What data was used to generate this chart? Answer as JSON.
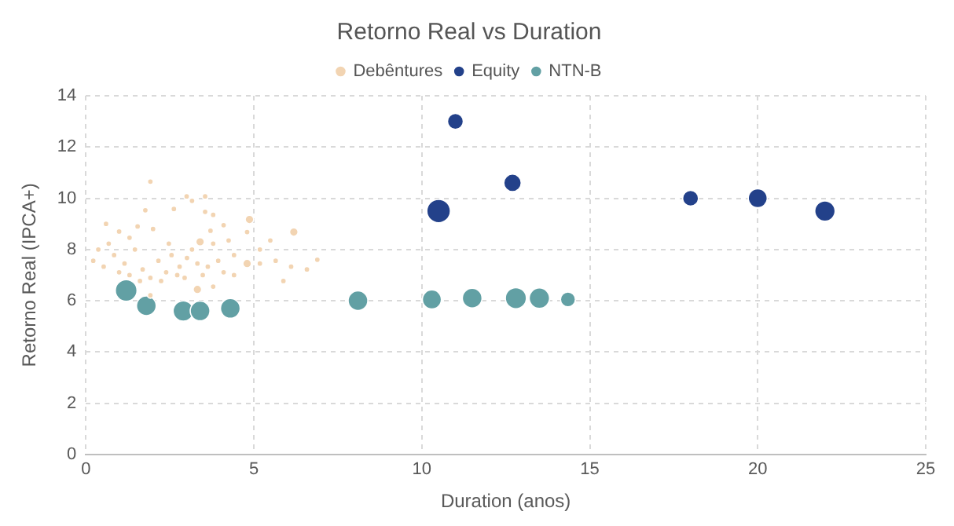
{
  "chart_data": {
    "type": "bubble",
    "title": "Retorno Real vs Duration",
    "xlabel": "Duration (anos)",
    "ylabel": "Retorno Real (IPCA+)",
    "xlim": [
      0,
      25
    ],
    "xticks": [
      0,
      5,
      10,
      15,
      20,
      25
    ],
    "ylim": [
      0,
      14
    ],
    "yticks": [
      0,
      2,
      4,
      6,
      8,
      10,
      12,
      14
    ],
    "grid": true,
    "legend": "top",
    "marker": "circle",
    "series": [
      {
        "name": "Debêntures",
        "color": "#f2d4b2",
        "x": [
          1.92,
          3.0,
          3.55,
          3.16,
          2.62,
          1.77,
          4.87,
          3.55,
          3.79,
          0.6,
          0.99,
          2.0,
          6.19,
          4.1,
          3.71,
          3.4,
          4.25,
          5.49,
          6.89,
          6.58,
          5.88,
          3.32,
          3.79,
          1.92,
          0.22,
          0.37,
          0.68,
          0.53,
          0.84,
          1.15,
          1.46,
          1.69,
          1.92,
          2.16,
          2.39,
          2.55,
          2.79,
          2.94,
          3.16,
          3.32,
          3.48,
          3.94,
          4.1,
          4.41,
          4.8,
          5.18,
          5.18,
          5.65,
          6.11,
          1.3,
          0.99,
          1.61,
          2.24,
          2.72,
          3.63,
          3.01,
          4.41,
          2.47,
          1.3,
          4.8,
          3.79,
          1.54
        ],
        "values": [
          10.65,
          10.07,
          10.07,
          9.9,
          9.58,
          9.53,
          9.17,
          9.47,
          9.35,
          9.0,
          8.7,
          8.8,
          8.68,
          8.95,
          8.73,
          8.3,
          8.35,
          8.35,
          7.6,
          7.22,
          6.77,
          6.44,
          6.55,
          6.21,
          7.56,
          8.0,
          8.23,
          7.33,
          7.78,
          7.45,
          8.0,
          7.22,
          6.89,
          7.56,
          7.11,
          7.78,
          7.33,
          6.89,
          8.0,
          7.45,
          7.0,
          7.56,
          7.11,
          7.78,
          7.45,
          8.0,
          7.45,
          7.56,
          7.33,
          7.0,
          7.11,
          6.77,
          6.77,
          7.0,
          7.33,
          7.67,
          7.0,
          8.23,
          8.46,
          8.68,
          8.23,
          8.9
        ],
        "sizes": [
          0.06,
          0.06,
          0.06,
          0.06,
          0.06,
          0.06,
          0.13,
          0.06,
          0.06,
          0.06,
          0.06,
          0.06,
          0.13,
          0.06,
          0.06,
          0.13,
          0.06,
          0.06,
          0.06,
          0.06,
          0.06,
          0.13,
          0.06,
          0.06,
          0.06,
          0.06,
          0.06,
          0.06,
          0.06,
          0.06,
          0.06,
          0.06,
          0.06,
          0.06,
          0.06,
          0.06,
          0.06,
          0.06,
          0.06,
          0.06,
          0.06,
          0.06,
          0.06,
          0.06,
          0.13,
          0.06,
          0.06,
          0.06,
          0.06,
          0.06,
          0.06,
          0.06,
          0.06,
          0.06,
          0.06,
          0.06,
          0.06,
          0.06,
          0.06,
          0.06,
          0.06,
          0.06
        ]
      },
      {
        "name": "Equity",
        "color": "#23418a",
        "x": [
          11,
          10.5,
          12.7,
          18,
          20,
          22
        ],
        "values": [
          13,
          9.5,
          10.6,
          10,
          10,
          9.5
        ],
        "sizes": [
          0.45,
          1,
          0.55,
          0.45,
          0.65,
          0.75
        ]
      },
      {
        "name": "NTN-B",
        "color": "#62a0a4",
        "x": [
          1.2,
          1.8,
          2.9,
          3.4,
          4.3,
          8.1,
          10.3,
          11.5,
          12.8,
          13.5,
          14.35
        ],
        "values": [
          6.4,
          5.8,
          5.6,
          5.6,
          5.7,
          6.0,
          6.05,
          6.1,
          6.1,
          6.1,
          6.05
        ],
        "sizes": [
          0.85,
          0.7,
          0.75,
          0.7,
          0.7,
          0.7,
          0.65,
          0.7,
          0.8,
          0.75,
          0.4
        ]
      }
    ]
  }
}
